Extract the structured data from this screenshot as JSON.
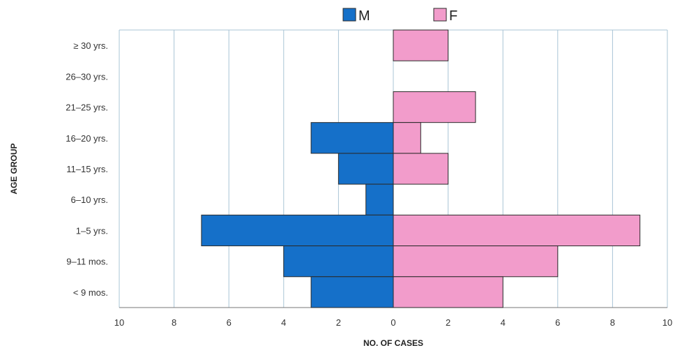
{
  "chart_data": {
    "type": "bar",
    "orientation": "horizontal-population-pyramid",
    "categories": [
      "≥ 30 yrs.",
      "26–30 yrs.",
      "21–25 yrs.",
      "16–20 yrs.",
      "11–15 yrs.",
      "6–10 yrs.",
      "1–5 yrs.",
      "9–11 mos.",
      "< 9 mos."
    ],
    "series": [
      {
        "name": "M",
        "values": [
          0,
          0,
          0,
          3,
          2,
          1,
          7,
          4,
          3
        ]
      },
      {
        "name": "F",
        "values": [
          2,
          0,
          3,
          1,
          2,
          0,
          9,
          6,
          4
        ]
      }
    ],
    "xlabel": "NO. OF CASES",
    "ylabel": "AGE GROUP",
    "xlim": [
      -10,
      10
    ],
    "x_ticks": [
      -10,
      -8,
      -6,
      -4,
      -2,
      0,
      2,
      4,
      6,
      8,
      10
    ],
    "x_tick_labels": [
      "10",
      "8",
      "6",
      "4",
      "2",
      "0",
      "2",
      "4",
      "6",
      "8",
      "10"
    ],
    "grid": "vertical",
    "legend": "top-center",
    "colors": {
      "M": "#1570c9",
      "F": "#f29ccb",
      "bar_edge": "#2a2a2a",
      "grid": "#a9c4d6"
    }
  }
}
